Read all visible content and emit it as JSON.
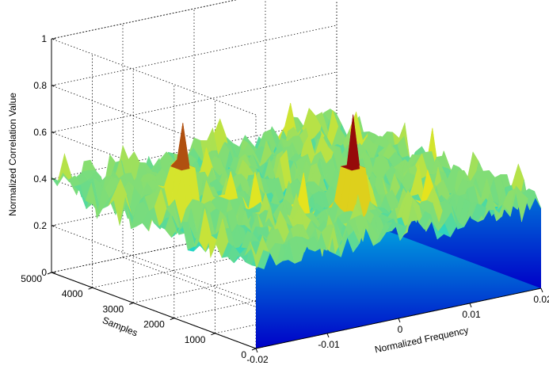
{
  "chart_data": {
    "type": "surface",
    "title": "",
    "xlabel": "Normalized Frequency",
    "ylabel": "Samples",
    "zlabel": "Normalized Correlation Value",
    "xlim": [
      -0.02,
      0.02
    ],
    "ylim": [
      0,
      5000
    ],
    "zlim": [
      0,
      1
    ],
    "x_ticks": [
      "-0.02",
      "-0.01",
      "0",
      "0.01",
      "0.02"
    ],
    "y_ticks": [
      "0",
      "1000",
      "2000",
      "3000",
      "4000",
      "5000"
    ],
    "z_ticks": [
      "0",
      "0.2",
      "0.4",
      "0.6",
      "0.8",
      "1"
    ],
    "grid": true,
    "colormap": "jet",
    "noise_floor": [
      0.3,
      0.45
    ],
    "peaks": [
      {
        "x": 0.0,
        "y": 1100,
        "z": 0.8
      },
      {
        "x": -0.013,
        "y": 3100,
        "z": 0.72
      },
      {
        "x": -0.01,
        "y": 2300,
        "z": 0.54
      },
      {
        "x": -0.015,
        "y": 400,
        "z": 0.45
      }
    ]
  },
  "colors": {
    "low": "#0000c8",
    "mid": "#00d2e6",
    "high": "#e6e61e",
    "peak": "#960a0a"
  }
}
